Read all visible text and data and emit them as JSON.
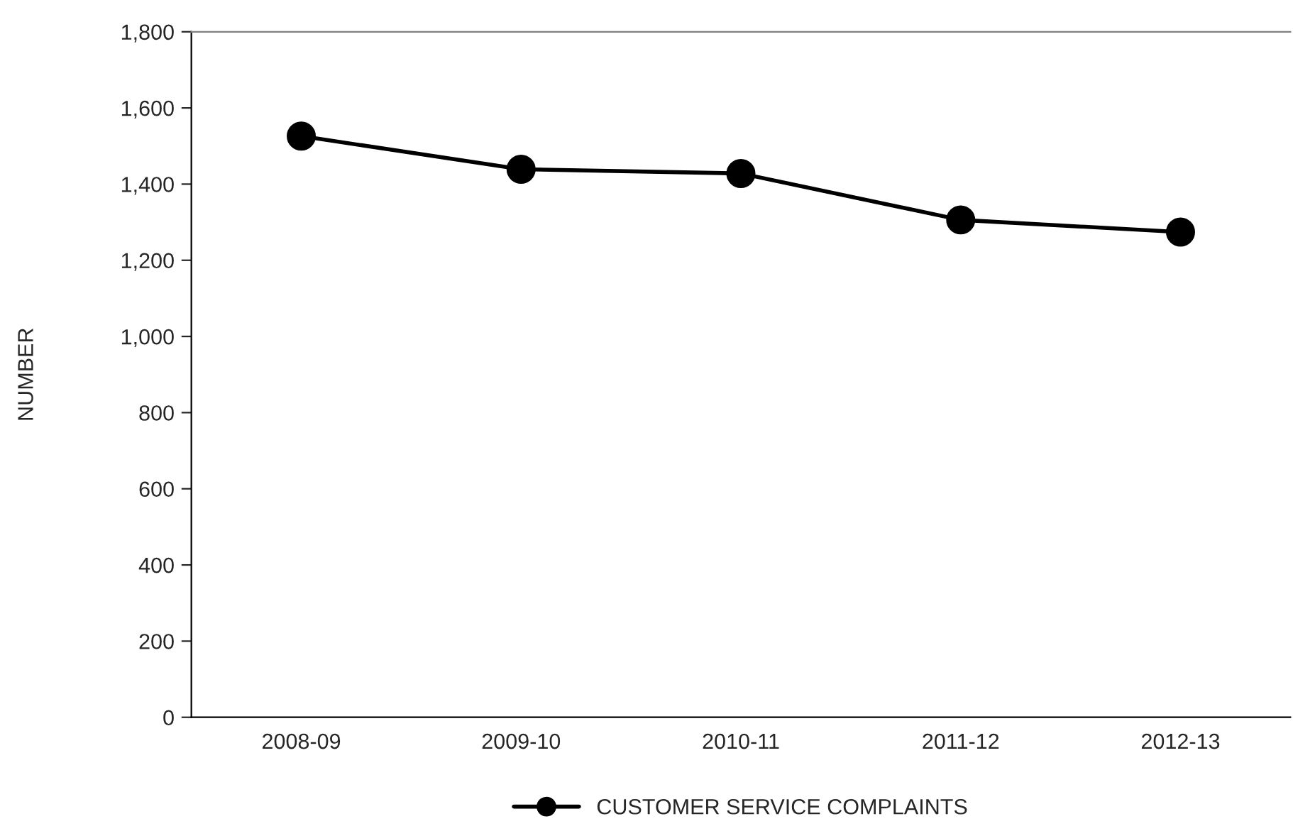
{
  "chart_data": {
    "type": "line",
    "ylabel": "NUMBER",
    "categories": [
      "2008-09",
      "2009-10",
      "2010-11",
      "2011-12",
      "2012-13"
    ],
    "series": [
      {
        "name": "CUSTOMER SERVICE COMPLAINTS",
        "color": "#000000",
        "values": [
          1526,
          1439,
          1428,
          1306,
          1274
        ]
      }
    ],
    "ylim": [
      0,
      1800
    ],
    "yticks": [
      {
        "value": 0,
        "label": "0"
      },
      {
        "value": 200,
        "label": "200"
      },
      {
        "value": 400,
        "label": "400"
      },
      {
        "value": 600,
        "label": "600"
      },
      {
        "value": 800,
        "label": "800"
      },
      {
        "value": 1000,
        "label": "1,000"
      },
      {
        "value": 1200,
        "label": "1,200"
      },
      {
        "value": 1400,
        "label": "1,400"
      },
      {
        "value": 1600,
        "label": "1,600"
      },
      {
        "value": 1800,
        "label": "1,800"
      }
    ],
    "grid": false,
    "legend": "bottom",
    "marker": "circle",
    "line_style": "solid"
  }
}
